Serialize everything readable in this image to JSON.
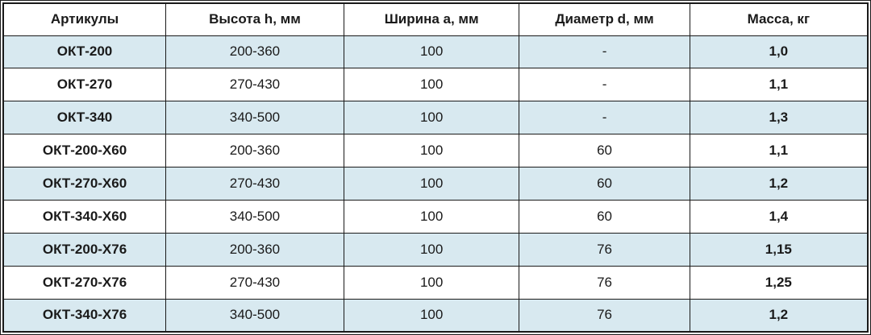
{
  "chart_data": {
    "type": "table",
    "title": "",
    "columns": [
      "Артикулы",
      "Высота h, мм",
      "Ширина a, мм",
      "Диаметр d, мм",
      "Масса, кг"
    ],
    "rows": [
      [
        "ОКТ-200",
        "200-360",
        "100",
        "-",
        "1,0"
      ],
      [
        "ОКТ-270",
        "270-430",
        "100",
        "-",
        "1,1"
      ],
      [
        "ОКТ-340",
        "340-500",
        "100",
        "-",
        "1,3"
      ],
      [
        "ОКТ-200-Х60",
        "200-360",
        "100",
        "60",
        "1,1"
      ],
      [
        "ОКТ-270-Х60",
        "270-430",
        "100",
        "60",
        "1,2"
      ],
      [
        "ОКТ-340-Х60",
        "340-500",
        "100",
        "60",
        "1,4"
      ],
      [
        "ОКТ-200-Х76",
        "200-360",
        "100",
        "76",
        "1,15"
      ],
      [
        "ОКТ-270-Х76",
        "270-430",
        "100",
        "76",
        "1,25"
      ],
      [
        "ОКТ-340-Х76",
        "340-500",
        "100",
        "76",
        "1,2"
      ]
    ],
    "layout": {
      "striping": "odd data rows highlighted",
      "bold_columns": [
        "Артикулы",
        "Масса, кг"
      ],
      "grid": true
    }
  },
  "colors": {
    "alt_row_background": "#d8e9f0",
    "border": "#1a1a1a",
    "text": "#1a1a1a",
    "background": "#ffffff"
  }
}
